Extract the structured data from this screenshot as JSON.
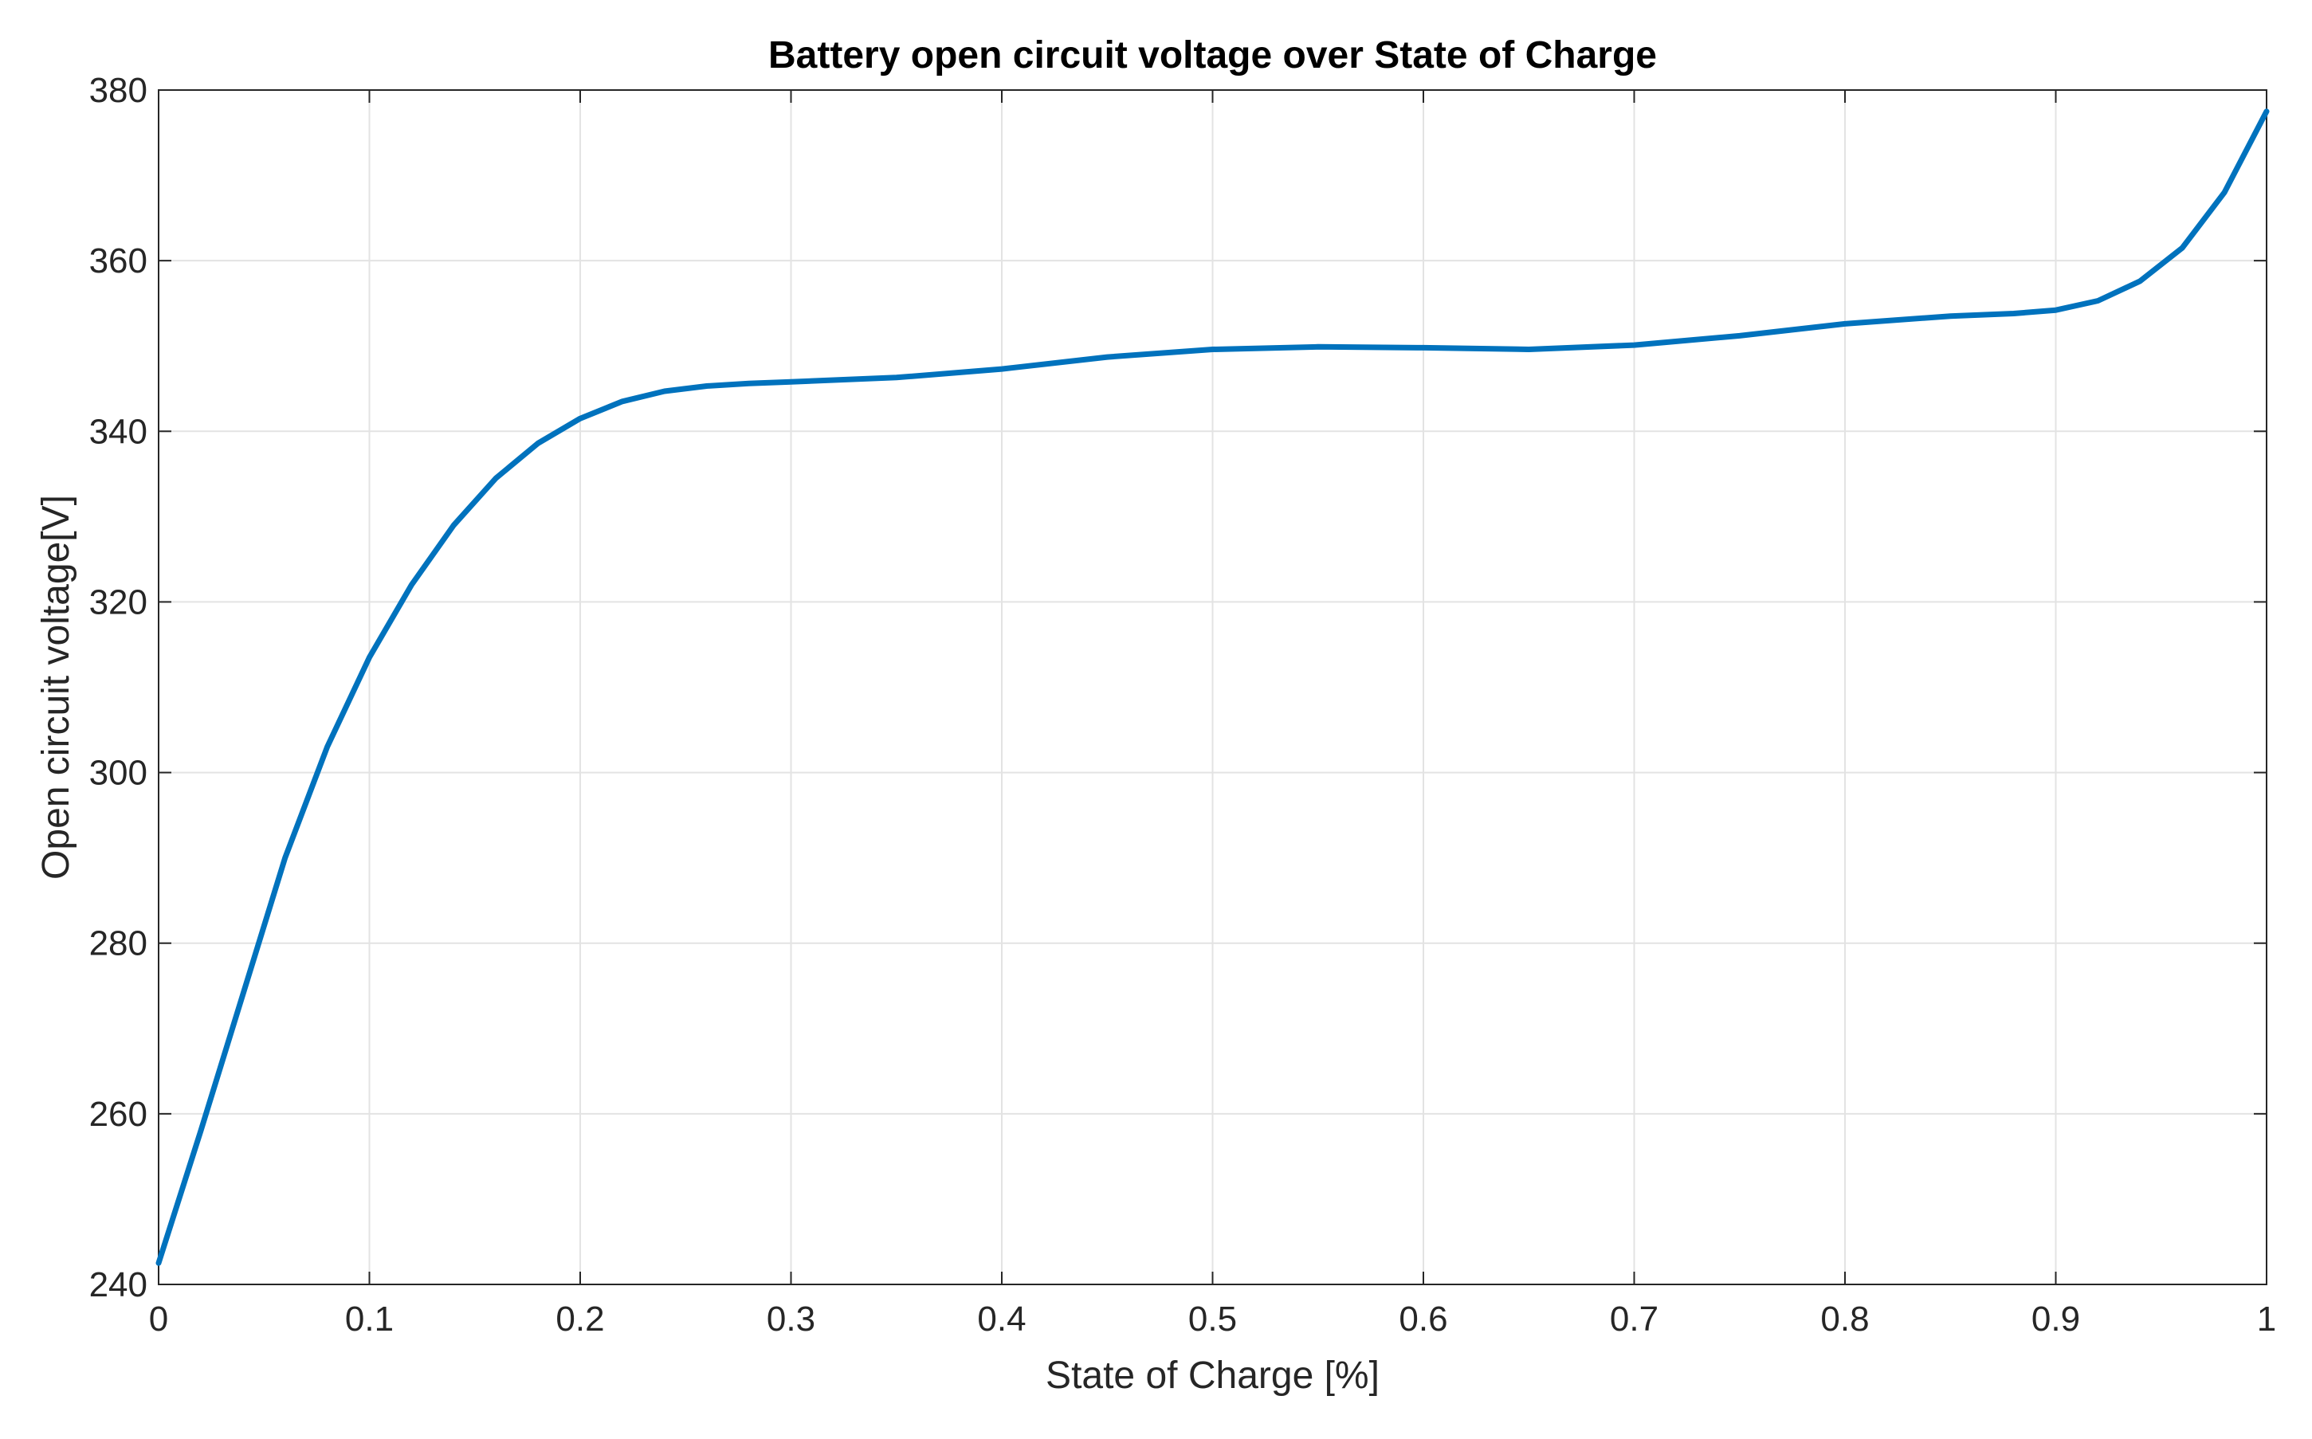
{
  "chart_data": {
    "type": "line",
    "title": "Battery open circuit voltage over State of Charge",
    "xlabel": "State of Charge [%]",
    "ylabel": "Open circuit voltage[V]",
    "xlim": [
      0,
      1
    ],
    "ylim": [
      240,
      380
    ],
    "grid": true,
    "legend": "none",
    "xticks": [
      0,
      0.1,
      0.2,
      0.3,
      0.4,
      0.5,
      0.6,
      0.7,
      0.8,
      0.9,
      1
    ],
    "xtick_labels": [
      "0",
      "0.1",
      "0.2",
      "0.3",
      "0.4",
      "0.5",
      "0.6",
      "0.7",
      "0.8",
      "0.9",
      "1"
    ],
    "yticks": [
      240,
      260,
      280,
      300,
      320,
      340,
      360,
      380
    ],
    "ytick_labels": [
      "240",
      "260",
      "280",
      "300",
      "320",
      "340",
      "360",
      "380"
    ],
    "series": [
      {
        "name": "Open circuit voltage",
        "color": "#0072BD",
        "x": [
          0,
          0.02,
          0.04,
          0.06,
          0.08,
          0.1,
          0.12,
          0.14,
          0.16,
          0.18,
          0.2,
          0.22,
          0.24,
          0.26,
          0.28,
          0.3,
          0.35,
          0.4,
          0.45,
          0.5,
          0.55,
          0.6,
          0.65,
          0.7,
          0.75,
          0.8,
          0.85,
          0.88,
          0.9,
          0.92,
          0.94,
          0.96,
          0.98,
          1.0
        ],
        "y": [
          242.5,
          258,
          274,
          290,
          303,
          313.5,
          322,
          329,
          334.5,
          338.6,
          341.5,
          343.5,
          344.7,
          345.3,
          345.6,
          345.8,
          346.3,
          347.3,
          348.7,
          349.6,
          349.9,
          349.8,
          349.6,
          350.1,
          351.2,
          352.6,
          353.5,
          353.8,
          354.2,
          355.3,
          357.6,
          361.5,
          368.0,
          377.5
        ]
      }
    ]
  }
}
